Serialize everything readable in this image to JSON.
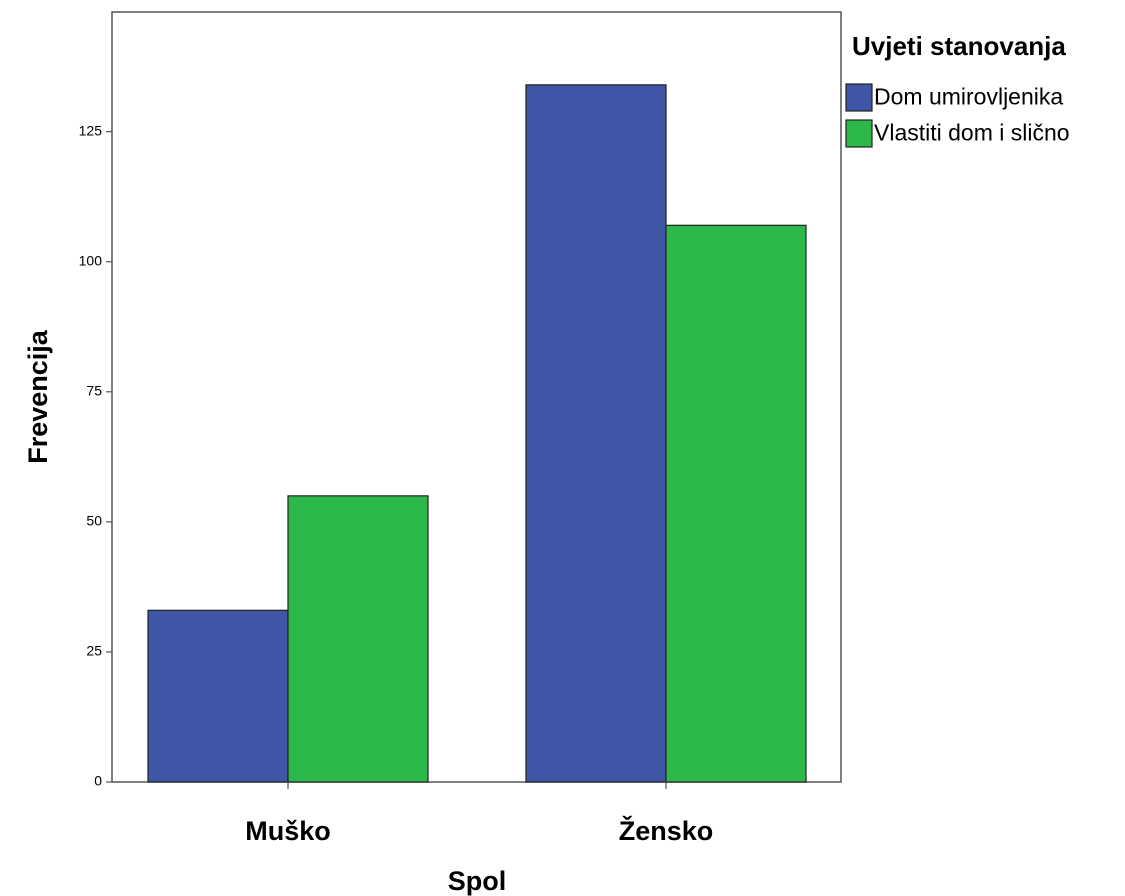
{
  "chart_data": {
    "type": "bar",
    "categories": [
      "Muško",
      "Žensko"
    ],
    "series": [
      {
        "name": "Dom umirovljenika",
        "values": [
          33,
          134
        ],
        "color": "#3f55a6"
      },
      {
        "name": "Vlastiti dom i slično",
        "values": [
          55,
          107
        ],
        "color": "#2db84a"
      }
    ],
    "xlabel": "Spol",
    "ylabel": "Frevencija",
    "ylim": [
      0,
      148
    ],
    "yticks": [
      0,
      25,
      50,
      75,
      100,
      125
    ],
    "legend": {
      "title": "Uvjeti stanovanja",
      "placement": "right"
    },
    "grid": false
  }
}
